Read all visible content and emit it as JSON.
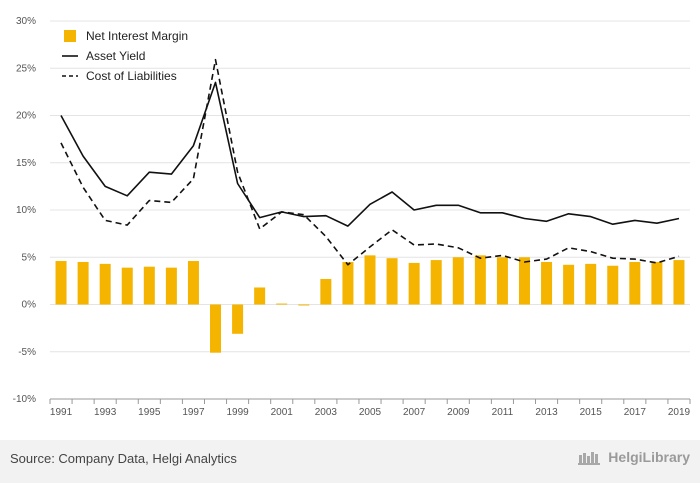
{
  "chart_data": {
    "type": "bar+line",
    "categories": [
      1991,
      1992,
      1993,
      1994,
      1995,
      1996,
      1997,
      1998,
      1999,
      2000,
      2001,
      2002,
      2003,
      2004,
      2005,
      2006,
      2007,
      2008,
      2009,
      2010,
      2011,
      2012,
      2013,
      2014,
      2015,
      2016,
      2017,
      2018,
      2019
    ],
    "x_tick_labels": [
      "1991",
      "1993",
      "1995",
      "1997",
      "1999",
      "2001",
      "2003",
      "2005",
      "2007",
      "2009",
      "2011",
      "2013",
      "2015",
      "2017",
      "2019"
    ],
    "y_tick_labels": [
      "30%",
      "25%",
      "20%",
      "15%",
      "10%",
      "5%",
      "0%",
      "-5%",
      "-10%"
    ],
    "ylim": [
      -10,
      30
    ],
    "grid": true,
    "legend_position": "top-left",
    "series": [
      {
        "name": "Net Interest Margin",
        "type": "bar",
        "color": "#f5b400",
        "values": [
          4.6,
          4.5,
          4.3,
          3.9,
          4.0,
          3.9,
          4.6,
          -5.1,
          -3.1,
          1.8,
          0.1,
          -0.1,
          2.7,
          4.5,
          5.2,
          4.9,
          4.4,
          4.7,
          5.0,
          5.2,
          5.0,
          5.0,
          4.5,
          4.2,
          4.3,
          4.1,
          4.5,
          4.5,
          4.7
        ]
      },
      {
        "name": "Asset Yield",
        "type": "line",
        "style": "solid",
        "color": "#111111",
        "values": [
          20.0,
          15.7,
          12.5,
          11.5,
          14.0,
          13.8,
          16.8,
          23.5,
          12.8,
          9.2,
          9.8,
          9.3,
          9.4,
          8.3,
          10.6,
          11.9,
          10.0,
          10.5,
          10.5,
          9.7,
          9.7,
          9.1,
          8.8,
          9.6,
          9.3,
          8.5,
          8.9,
          8.6,
          9.1
        ]
      },
      {
        "name": "Cost of Liabilities",
        "type": "line",
        "style": "dashed",
        "color": "#111111",
        "values": [
          17.1,
          12.4,
          8.9,
          8.4,
          11.0,
          10.8,
          13.3,
          25.9,
          14.0,
          8.0,
          9.8,
          9.5,
          7.2,
          4.2,
          6.1,
          7.9,
          6.3,
          6.4,
          6.0,
          4.9,
          5.2,
          4.5,
          4.8,
          6.0,
          5.6,
          4.9,
          4.8,
          4.4,
          5.1
        ]
      }
    ]
  },
  "footer": {
    "source": "Source: Company Data, Helgi Analytics",
    "brand": "HelgiLibrary"
  }
}
